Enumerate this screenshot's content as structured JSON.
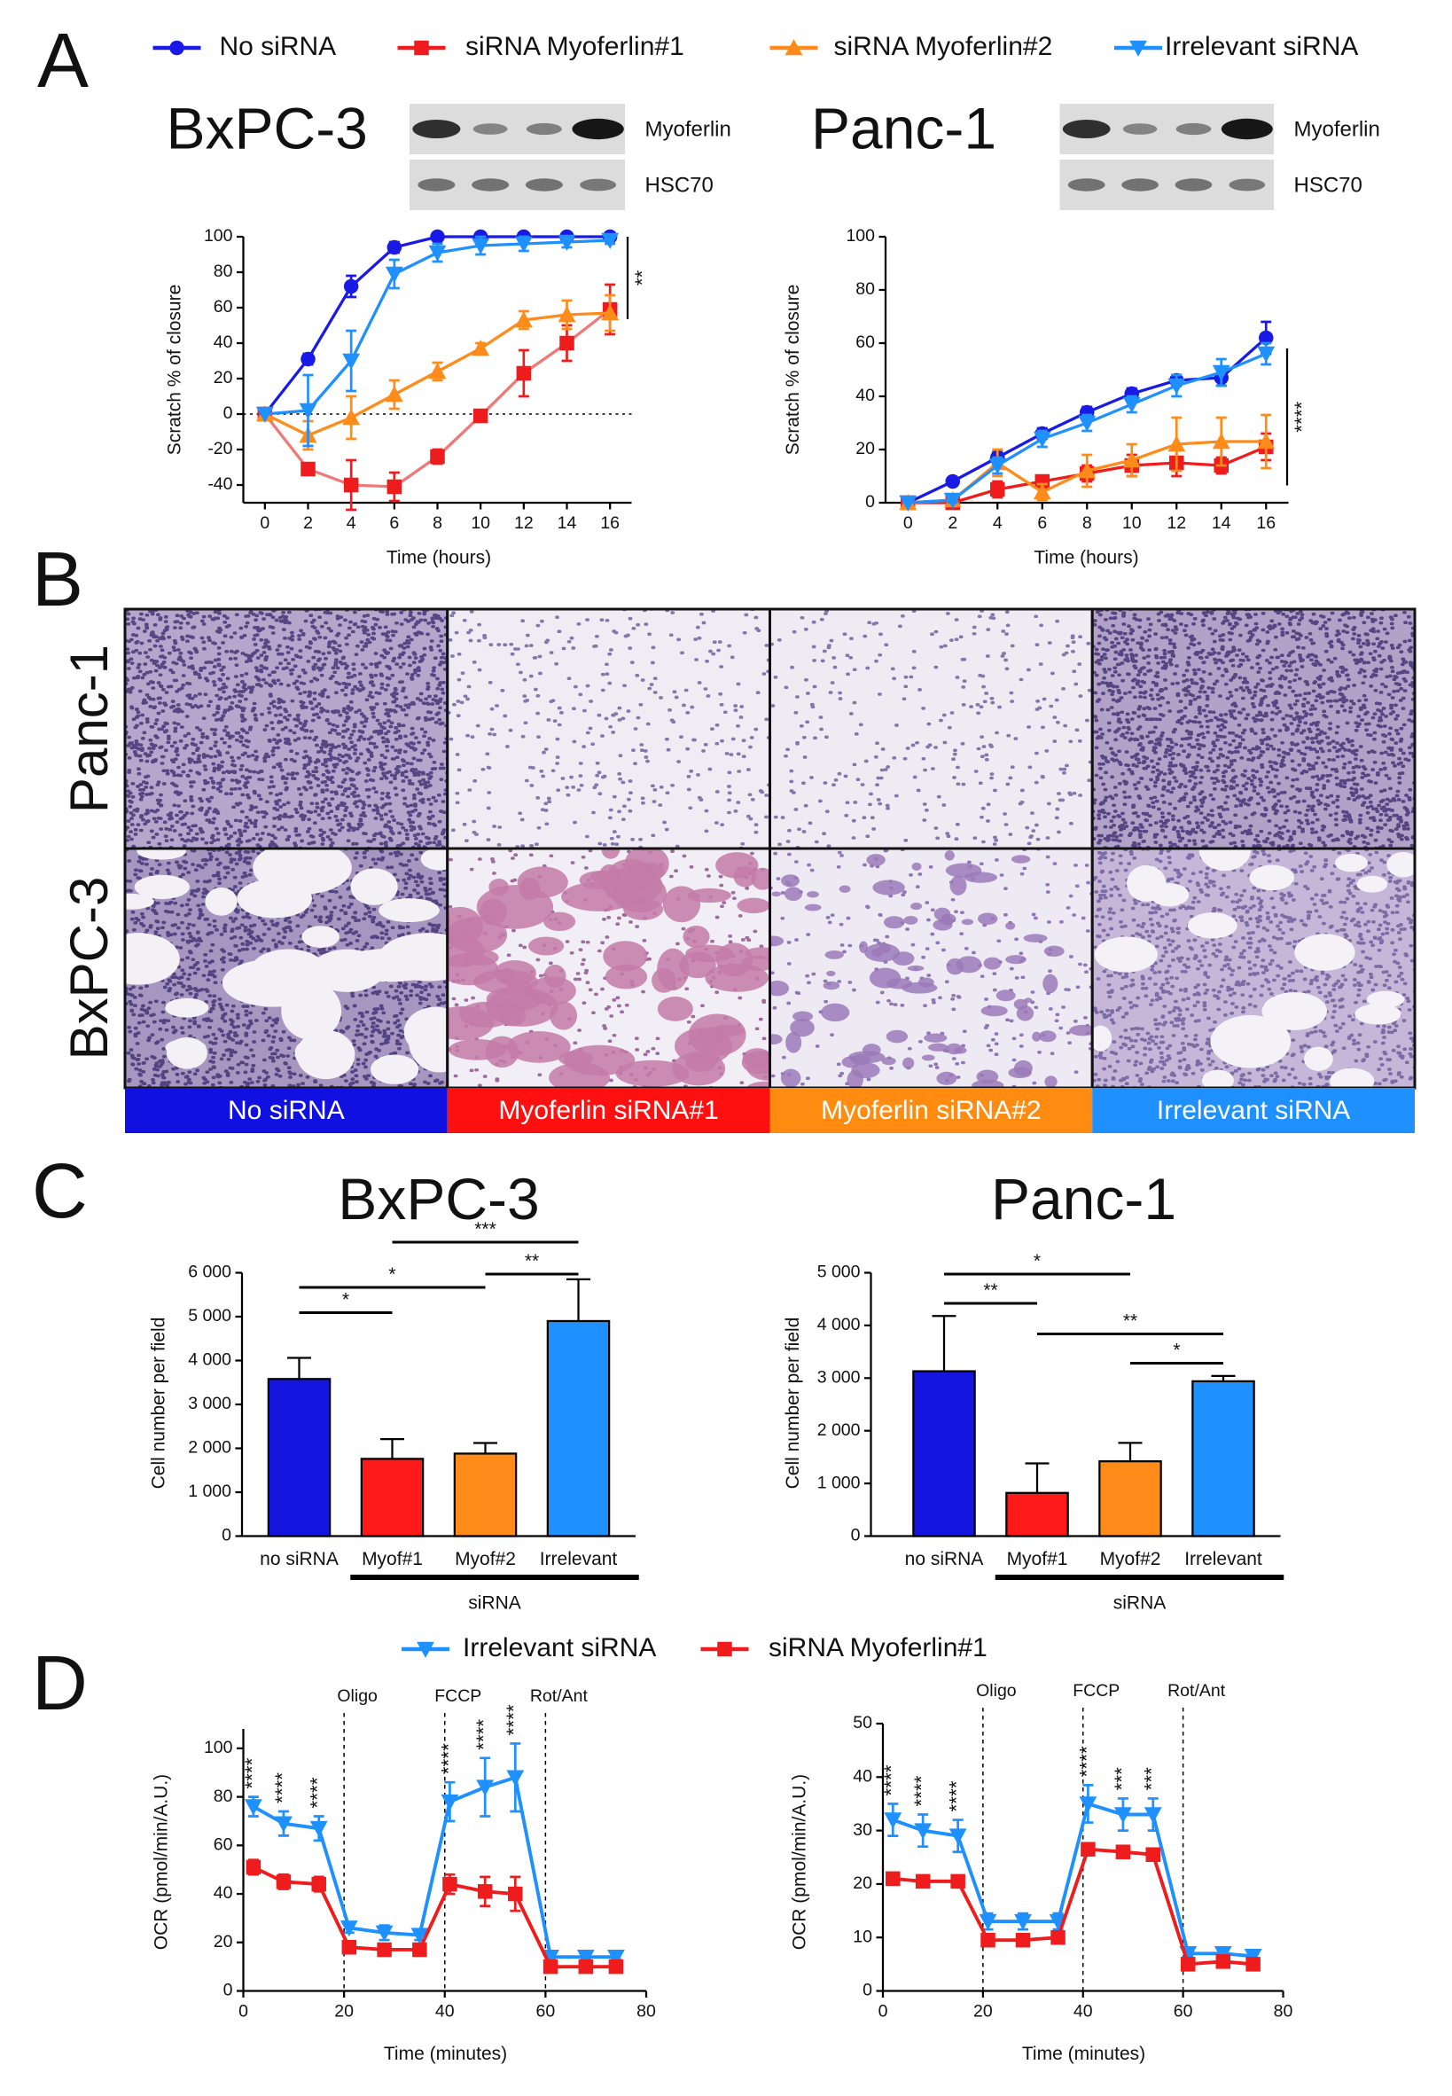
{
  "panels": [
    "A",
    "B",
    "C",
    "D"
  ],
  "chart_data": [
    {
      "type": "line",
      "title": "BxPC-3",
      "blot_labels": [
        "Myoferlin",
        "HSC70"
      ],
      "x": [
        0,
        2,
        4,
        6,
        8,
        10,
        12,
        14,
        16
      ],
      "xlim": [
        -1,
        17
      ],
      "xticks": [
        0,
        2,
        4,
        6,
        8,
        10,
        12,
        14,
        16
      ],
      "ylim": [
        -50,
        100
      ],
      "yticks": [
        -40,
        -20,
        0,
        20,
        40,
        60,
        80,
        100
      ],
      "zero_line": true,
      "xlabel": "Time (hours)",
      "ylabel": "Scratch % of closure",
      "annotation": "**",
      "series": [
        {
          "name": "No siRNA",
          "color": "#1a1ae6",
          "marker": "circle",
          "values": [
            0,
            31,
            72,
            94,
            100,
            100,
            100,
            100,
            100
          ],
          "errors": [
            0,
            3,
            6,
            3,
            1,
            1,
            1,
            1,
            1
          ]
        },
        {
          "name": "siRNA Myoferlin#1",
          "color": "#ee1c1c",
          "line_color": "#f07878",
          "marker": "square",
          "values": [
            0,
            -31,
            -40,
            -41,
            -24,
            -1,
            23,
            40,
            59
          ],
          "errors": [
            0,
            3,
            14,
            8,
            4,
            2,
            13,
            10,
            14
          ]
        },
        {
          "name": "siRNA Myoferlin#2",
          "color": "#ff8c1a",
          "marker": "triangle-up",
          "values": [
            0,
            -12,
            -2,
            11,
            24,
            37,
            53,
            56,
            57
          ],
          "errors": [
            0,
            8,
            12,
            8,
            5,
            3,
            5,
            8,
            10
          ]
        },
        {
          "name": "Irrelevant siRNA",
          "color": "#1e90ff",
          "marker": "triangle-down",
          "values": [
            0,
            2,
            30,
            79,
            91,
            95,
            96,
            97,
            98
          ],
          "errors": [
            0,
            20,
            17,
            8,
            5,
            5,
            4,
            3,
            2
          ]
        }
      ]
    },
    {
      "type": "line",
      "title": "Panc-1",
      "blot_labels": [
        "Myoferlin",
        "HSC70"
      ],
      "x": [
        0,
        2,
        4,
        6,
        8,
        10,
        12,
        14,
        16
      ],
      "xlim": [
        -1,
        17
      ],
      "xticks": [
        0,
        2,
        4,
        6,
        8,
        10,
        12,
        14,
        16
      ],
      "ylim": [
        0,
        100
      ],
      "yticks": [
        0,
        20,
        40,
        60,
        80,
        100
      ],
      "xlabel": "Time (hours)",
      "ylabel": "Scratch % of closure",
      "annotation": "****",
      "series": [
        {
          "color": "#1a1ae6",
          "marker": "circle",
          "values": [
            0,
            8,
            17,
            26,
            34,
            41,
            46,
            47,
            62
          ],
          "errors": [
            0,
            1,
            2,
            2,
            2,
            2,
            2,
            3,
            6
          ]
        },
        {
          "color": "#ee1c1c",
          "marker": "square",
          "values": [
            0,
            0,
            5,
            8,
            11,
            14,
            15,
            14,
            21
          ],
          "errors": [
            0,
            1,
            3,
            2,
            3,
            4,
            5,
            3,
            5
          ]
        },
        {
          "color": "#ff8c1a",
          "marker": "triangle-up",
          "values": [
            0,
            1,
            15,
            4,
            12,
            16,
            22,
            23,
            23
          ],
          "errors": [
            0,
            1,
            5,
            3,
            6,
            6,
            10,
            9,
            10
          ]
        },
        {
          "color": "#1e90ff",
          "marker": "triangle-down",
          "values": [
            0,
            1,
            14,
            24,
            30,
            37,
            44,
            49,
            56
          ],
          "errors": [
            0,
            1,
            3,
            3,
            3,
            3,
            4,
            5,
            4
          ]
        }
      ]
    },
    {
      "type": "bar",
      "title": "BxPC-3",
      "ylabel": "Cell number per field",
      "categories": [
        "no siRNA",
        "Myof#1",
        "Myof#2",
        "Irrelevant"
      ],
      "values": [
        3580,
        1760,
        1880,
        4900
      ],
      "errors": [
        480,
        450,
        240,
        950
      ],
      "colors": [
        "#1515e0",
        "#ff1a1a",
        "#ff8c1a",
        "#1e90ff"
      ],
      "ylim": [
        0,
        6000
      ],
      "yticks": [
        0,
        {
          "value": 1000,
          "label": "1 000"
        },
        {
          "value": 2000,
          "label": "2 000"
        },
        {
          "value": 3000,
          "label": "3 000"
        },
        {
          "value": 4000,
          "label": "4 000"
        },
        {
          "value": 5000,
          "label": "5 000"
        },
        {
          "value": 6000,
          "label": "6 000"
        }
      ],
      "group": {
        "label": "siRNA",
        "from": 1,
        "to": 3
      },
      "comparisons": [
        {
          "pair": [
            0,
            1
          ],
          "label": "*"
        },
        {
          "pair": [
            0,
            2
          ],
          "label": "*"
        },
        {
          "pair": [
            1,
            3
          ],
          "label": "***"
        },
        {
          "pair": [
            2,
            3
          ],
          "label": "**"
        }
      ]
    },
    {
      "type": "bar",
      "title": "Panc-1",
      "ylabel": "Cell number per field",
      "categories": [
        "no siRNA",
        "Myof#1",
        "Myof#2",
        "Irrelevant"
      ],
      "values": [
        3130,
        820,
        1420,
        2940
      ],
      "errors": [
        1050,
        560,
        350,
        100
      ],
      "colors": [
        "#1515e0",
        "#ff1a1a",
        "#ff8c1a",
        "#1e90ff"
      ],
      "ylim": [
        0,
        5000
      ],
      "yticks": [
        0,
        {
          "value": 1000,
          "label": "1 000"
        },
        {
          "value": 2000,
          "label": "2 000"
        },
        {
          "value": 3000,
          "label": "3 000"
        },
        {
          "value": 4000,
          "label": "4 000"
        },
        {
          "value": 5000,
          "label": "5 000"
        }
      ],
      "group": {
        "label": "siRNA",
        "from": 1,
        "to": 3
      },
      "comparisons": [
        {
          "pair": [
            0,
            1
          ],
          "label": "**"
        },
        {
          "pair": [
            0,
            2
          ],
          "label": "*"
        },
        {
          "pair": [
            1,
            3
          ],
          "label": "**"
        },
        {
          "pair": [
            2,
            3
          ],
          "label": "*"
        }
      ]
    },
    {
      "type": "line",
      "xlabel": "Time (minutes)",
      "ylabel": "OCR (pmol/min/A.U.)",
      "x": [
        2,
        8,
        15,
        21,
        28,
        35,
        41,
        48,
        54,
        61,
        68,
        74
      ],
      "xlim": [
        0,
        80
      ],
      "xticks": [
        0,
        20,
        40,
        60,
        80
      ],
      "ylim": [
        0,
        108
      ],
      "yticks": [
        0,
        20,
        40,
        60,
        80,
        100
      ],
      "events": [
        {
          "x": 20,
          "label": "Oligo"
        },
        {
          "x": 40,
          "label": "FCCP"
        },
        {
          "x": 60,
          "label": "Rot/Ant"
        }
      ],
      "stars": [
        {
          "x": 2,
          "label": "****"
        },
        {
          "x": 8,
          "label": "****"
        },
        {
          "x": 15,
          "label": "****"
        },
        {
          "x": 41,
          "label": "****"
        },
        {
          "x": 48,
          "label": "****"
        },
        {
          "x": 54,
          "label": "****"
        }
      ],
      "series": [
        {
          "name": "Irrelevant siRNA",
          "color": "#1e90ff",
          "marker": "triangle-down",
          "values": [
            76,
            69,
            67,
            26,
            24,
            23,
            78,
            84,
            88,
            14,
            14,
            14
          ],
          "errors": [
            4,
            5,
            5,
            2,
            3,
            2,
            8,
            12,
            14,
            1,
            1,
            1
          ]
        },
        {
          "name": "siRNA Myoferlin#1",
          "color": "#ee1c1c",
          "marker": "square",
          "values": [
            51,
            45,
            44,
            18,
            17,
            17,
            44,
            41,
            40,
            10,
            10,
            10
          ],
          "errors": [
            3,
            3,
            3,
            1,
            1,
            1,
            4,
            6,
            7,
            1,
            1,
            1
          ]
        }
      ]
    },
    {
      "type": "line",
      "xlabel": "Time (minutes)",
      "ylabel": "OCR (pmol/min/A.U.)",
      "x": [
        2,
        8,
        15,
        21,
        28,
        35,
        41,
        48,
        54,
        61,
        68,
        74
      ],
      "xlim": [
        0,
        80
      ],
      "xticks": [
        0,
        20,
        40,
        60,
        80
      ],
      "ylim": [
        0,
        50
      ],
      "yticks": [
        0,
        10,
        20,
        30,
        40,
        50
      ],
      "events": [
        {
          "x": 20,
          "label": "Oligo"
        },
        {
          "x": 40,
          "label": "FCCP"
        },
        {
          "x": 60,
          "label": "Rot/Ant"
        }
      ],
      "stars": [
        {
          "x": 2,
          "label": "****"
        },
        {
          "x": 8,
          "label": "****"
        },
        {
          "x": 15,
          "label": "****"
        },
        {
          "x": 41,
          "label": "****"
        },
        {
          "x": 48,
          "label": "***"
        },
        {
          "x": 54,
          "label": "***"
        }
      ],
      "series": [
        {
          "color": "#1e90ff",
          "marker": "triangle-down",
          "values": [
            32,
            30,
            29,
            13,
            13,
            13,
            35,
            33,
            33,
            7,
            7,
            6.5
          ],
          "errors": [
            3,
            3,
            3,
            1.5,
            1.5,
            1.5,
            3.5,
            3,
            3,
            0.5,
            0.5,
            0.5
          ]
        },
        {
          "color": "#ee1c1c",
          "marker": "square",
          "values": [
            21,
            20.5,
            20.5,
            9.5,
            9.5,
            10,
            26.5,
            26,
            25.5,
            5,
            5.5,
            5
          ],
          "errors": [
            1,
            1,
            1,
            0.5,
            0.5,
            0.5,
            1,
            1,
            1,
            0.5,
            0.5,
            0.5
          ]
        }
      ]
    }
  ],
  "panel_b": {
    "rows": [
      "Panc-1",
      "BxPC-3"
    ],
    "columns": [
      {
        "label": "No siRNA",
        "color": "#1010e0"
      },
      {
        "label": "Myoferlin siRNA#1",
        "color": "#ff1010"
      },
      {
        "label": "Myoferlin siRNA#2",
        "color": "#ff8c10"
      },
      {
        "label": "Irrelevant siRNA",
        "color": "#1e90ff"
      }
    ]
  }
}
